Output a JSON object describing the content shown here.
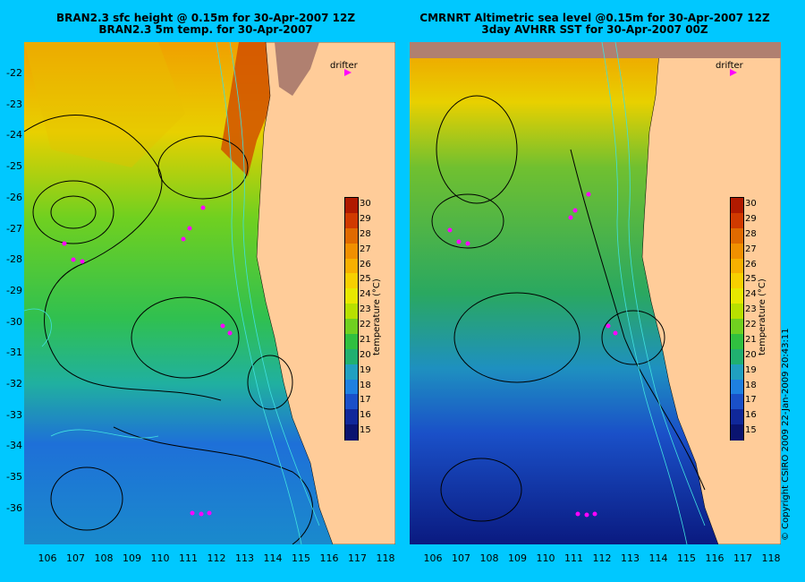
{
  "left_panel": {
    "title_line1": "BRAN2.3 sfc height @ 0.15m for 30-Apr-2007 12Z",
    "title_line2": "BRAN2.3 5m temp. for 30-Apr-2007",
    "drifter_label": "drifter"
  },
  "right_panel": {
    "title_line1": "CMRNRT Altimetric sea level  @0.15m  for 30-Apr-2007 12Z",
    "title_line2": "3day AVHRR SST for 30-Apr-2007 00Z",
    "drifter_label": "drifter"
  },
  "axes": {
    "lat_ticks": [
      "-22",
      "-23",
      "-24",
      "-25",
      "-26",
      "-27",
      "-28",
      "-29",
      "-30",
      "-31",
      "-32",
      "-33",
      "-34",
      "-35",
      "-36"
    ],
    "lon_ticks": [
      "106",
      "107",
      "108",
      "109",
      "110",
      "111",
      "112",
      "113",
      "114",
      "115",
      "116",
      "117",
      "118"
    ]
  },
  "colorbar": {
    "title": "temperature (°C)",
    "ticks": [
      "30",
      "29",
      "28",
      "27",
      "26",
      "25",
      "24",
      "23",
      "22",
      "21",
      "20",
      "19",
      "18",
      "17",
      "16",
      "15"
    ],
    "colors": [
      "#b01a00",
      "#d03a00",
      "#e06a00",
      "#f09000",
      "#f7b000",
      "#f7d000",
      "#e8e800",
      "#b8e000",
      "#70d020",
      "#30c040",
      "#20b070",
      "#20a0c0",
      "#1e80e0",
      "#1a50c8",
      "#10289a",
      "#0a1470"
    ]
  },
  "copyright": "© Copyright CSIRO 2009   22-Jan-2009 20:43:11"
}
